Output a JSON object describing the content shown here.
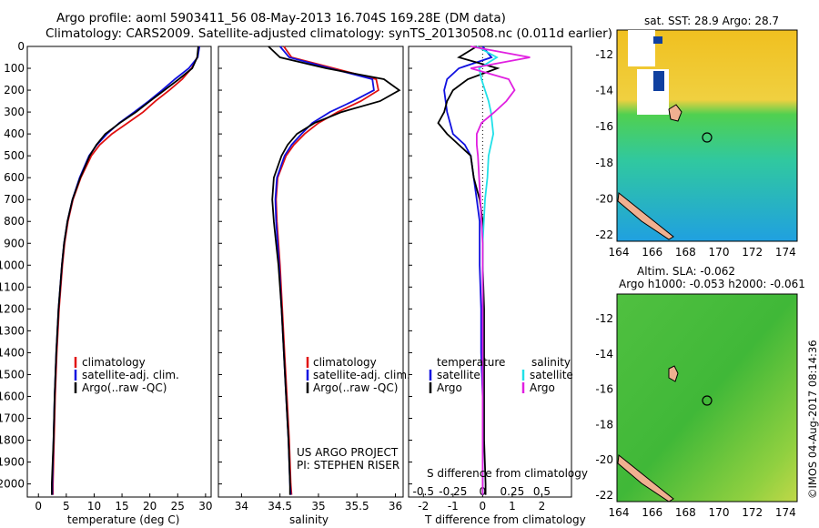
{
  "header": {
    "line1": "Argo profile: aoml 5903411_56 08-May-2013 16.704S 169.28E (DM data)",
    "line2": "Climatology: CARS2009. Satellite-adjusted climatology: synTS_20130508.nc (0.011d earlier)"
  },
  "colors": {
    "climatology": "#e01010",
    "satellite": "#1010e0",
    "argo": "#000000",
    "sat_sal": "#20e0e8",
    "argo_sal": "#e020e0"
  },
  "panels": {
    "temperature": {
      "xlabel": "temperature (deg C)",
      "legend": [
        "climatology",
        "satellite-adj. clim.",
        "Argo(..raw -QC)"
      ]
    },
    "salinity": {
      "xlabel": "salinity",
      "legend": [
        "climatology",
        "satellite-adj. clim.",
        "Argo(..raw -QC)"
      ],
      "credit1": "US ARGO PROJECT",
      "credit2": "PI: STEPHEN RISER"
    },
    "difference": {
      "xlabel": "T difference from climatology",
      "top_label": "S difference from climatology",
      "legend_t_title": "temperature",
      "legend_s_title": "salinity",
      "legend_t": [
        "satellite",
        "Argo"
      ],
      "legend_s": [
        "satellite",
        "Argo"
      ]
    }
  },
  "maps": {
    "sst_title": "sat. SST: 28.9 Argo: 28.7",
    "sla_title1": "Altim. SLA: -0.062",
    "sla_title2": "Argo h1000: -0.053 h2000: -0.061",
    "x_ticks": [
      "164",
      "166",
      "168",
      "170",
      "172",
      "174"
    ],
    "y_ticks": [
      "-12",
      "-14",
      "-16",
      "-18",
      "-20",
      "-22"
    ],
    "argo_position": {
      "lon": 169.28,
      "lat": -16.704
    }
  },
  "watermark": "©IMOS 04-Aug-2017 08:14:36",
  "chart_data": [
    {
      "type": "line",
      "title": "",
      "xlabel": "temperature (deg C)",
      "ylabel": "",
      "xlim": [
        -2,
        31
      ],
      "ylim": [
        2060,
        0
      ],
      "x_ticks": [
        0,
        5,
        10,
        15,
        20,
        25,
        30
      ],
      "y_ticks": [
        0,
        100,
        200,
        300,
        400,
        500,
        600,
        700,
        800,
        900,
        1000,
        1100,
        1200,
        1300,
        1400,
        1500,
        1600,
        1700,
        1800,
        1900,
        2000
      ],
      "y": [
        0,
        50,
        100,
        150,
        200,
        250,
        300,
        350,
        400,
        450,
        500,
        600,
        700,
        800,
        900,
        1000,
        1200,
        1400,
        1600,
        1800,
        2000,
        2050
      ],
      "series": [
        {
          "name": "climatology",
          "values": [
            28.9,
            28.5,
            27.5,
            25.8,
            23.5,
            21.0,
            18.8,
            16.0,
            13.2,
            11.0,
            9.5,
            7.6,
            6.2,
            5.3,
            4.7,
            4.3,
            3.7,
            3.3,
            3.0,
            2.8,
            2.6,
            2.6
          ]
        },
        {
          "name": "satellite-adj. clim.",
          "values": [
            28.9,
            28.6,
            27.0,
            24.5,
            22.2,
            19.8,
            17.2,
            14.5,
            12.3,
            10.5,
            9.1,
            7.4,
            6.1,
            5.2,
            4.6,
            4.2,
            3.6,
            3.2,
            2.9,
            2.7,
            2.5,
            2.5
          ]
        },
        {
          "name": "Argo(..raw -QC)",
          "values": [
            28.7,
            28.5,
            27.6,
            25.2,
            22.6,
            20.0,
            17.5,
            14.6,
            12.0,
            10.4,
            9.2,
            7.5,
            6.1,
            5.2,
            4.6,
            4.2,
            3.6,
            3.2,
            2.9,
            2.7,
            2.4,
            2.4
          ]
        }
      ]
    },
    {
      "type": "line",
      "title": "",
      "xlabel": "salinity",
      "ylabel": "",
      "xlim": [
        33.7,
        36.1
      ],
      "ylim": [
        2060,
        0
      ],
      "x_ticks": [
        34,
        34.5,
        35,
        35.5,
        36
      ],
      "y": [
        0,
        50,
        100,
        150,
        200,
        250,
        300,
        350,
        400,
        450,
        500,
        600,
        700,
        800,
        900,
        1000,
        1200,
        1400,
        1600,
        1800,
        2000,
        2050
      ],
      "series": [
        {
          "name": "climatology",
          "values": [
            34.55,
            34.65,
            35.2,
            35.75,
            35.78,
            35.55,
            35.25,
            35.0,
            34.82,
            34.68,
            34.58,
            34.47,
            34.45,
            34.46,
            34.48,
            34.5,
            34.53,
            34.56,
            34.59,
            34.62,
            34.64,
            34.65
          ]
        },
        {
          "name": "satellite-adj. clim.",
          "values": [
            34.5,
            34.62,
            35.15,
            35.7,
            35.72,
            35.45,
            35.15,
            34.92,
            34.78,
            34.65,
            34.56,
            34.46,
            34.44,
            34.45,
            34.47,
            34.49,
            34.52,
            34.55,
            34.58,
            34.61,
            34.63,
            34.64
          ]
        },
        {
          "name": "Argo(..raw -QC)",
          "values": [
            34.35,
            34.5,
            35.1,
            35.85,
            36.05,
            35.8,
            35.3,
            34.95,
            34.72,
            34.6,
            34.52,
            34.42,
            34.4,
            34.42,
            34.45,
            34.48,
            34.52,
            34.55,
            34.58,
            34.61,
            34.63,
            34.63
          ]
        }
      ]
    },
    {
      "type": "line",
      "title": "",
      "xlabel": "T difference from climatology",
      "ylabel": "",
      "xlim": [
        -2.5,
        3
      ],
      "ylim": [
        2060,
        0
      ],
      "x_ticks": [
        -2,
        -1,
        0,
        1,
        2
      ],
      "secondary_x_label": "S difference from climatology",
      "secondary_x_ticks": [
        -0.5,
        -0.25,
        0,
        0.25,
        0.5
      ],
      "y": [
        0,
        50,
        100,
        150,
        200,
        250,
        300,
        350,
        400,
        450,
        500,
        600,
        700,
        800,
        900,
        1000,
        1200,
        1400,
        1600,
        1800,
        2000,
        2050
      ],
      "series": [
        {
          "name": "temperature satellite",
          "values": [
            0.0,
            0.3,
            -0.8,
            -1.2,
            -1.3,
            -1.25,
            -1.2,
            -1.1,
            -1.0,
            -0.6,
            -0.4,
            -0.3,
            -0.2,
            -0.1,
            -0.1,
            -0.1,
            -0.05,
            -0.05,
            0.0,
            0.0,
            0.0,
            0.0
          ]
        },
        {
          "name": "temperature Argo",
          "values": [
            -0.2,
            -0.8,
            0.5,
            -0.5,
            -1.0,
            -1.2,
            -1.3,
            -1.5,
            -1.2,
            -0.8,
            -0.4,
            -0.3,
            -0.1,
            0.0,
            0.0,
            0.0,
            0.05,
            0.05,
            0.05,
            0.05,
            0.1,
            0.1
          ]
        },
        {
          "name": "salinity satellite",
          "values": [
            -0.05,
            0.12,
            -0.03,
            -0.01,
            0.02,
            0.05,
            0.07,
            0.08,
            0.09,
            0.07,
            0.05,
            0.04,
            0.02,
            0.01,
            0.0,
            0.0,
            0.0,
            0.0,
            0.0,
            0.0,
            0.0,
            0.0
          ]
        },
        {
          "name": "salinity Argo",
          "values": [
            -0.1,
            0.4,
            -0.1,
            0.22,
            0.27,
            0.2,
            0.1,
            -0.01,
            -0.05,
            -0.05,
            -0.04,
            -0.03,
            -0.02,
            -0.01,
            0.0,
            0.0,
            0.0,
            0.0,
            0.0,
            0.0,
            0.0,
            0.0
          ]
        }
      ]
    }
  ]
}
